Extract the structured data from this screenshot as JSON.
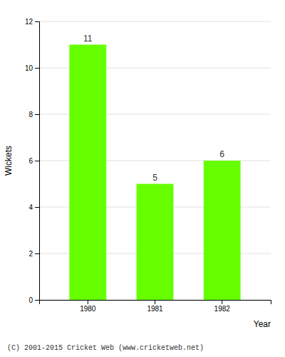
{
  "chart_data": {
    "type": "bar",
    "categories": [
      "1980",
      "1981",
      "1982"
    ],
    "values": [
      11,
      5,
      6
    ],
    "color": "#66ff00",
    "xlabel": "Year",
    "ylabel": "Wickets",
    "ylim": [
      0,
      12
    ],
    "yticks": [
      0,
      2,
      4,
      6,
      8,
      10,
      12
    ],
    "grid": true,
    "data_labels": true,
    "annotations": [
      "(C) 2001-2015 Cricket Web (www.cricketweb.net)"
    ]
  }
}
